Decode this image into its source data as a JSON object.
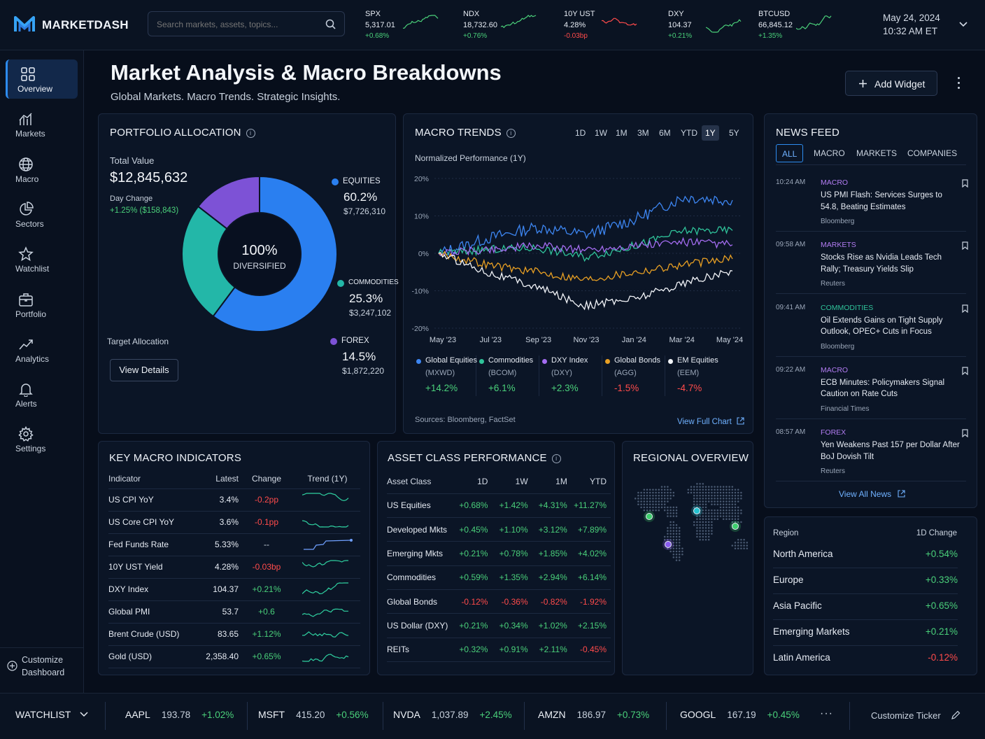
{
  "app": {
    "name": "MARKETDASH"
  },
  "search": {
    "placeholder": "Search markets, assets, topics..."
  },
  "tickers": [
    {
      "sym": "SPX",
      "val": "5,317.01",
      "chg": "+0.68%",
      "up": true
    },
    {
      "sym": "NDX",
      "val": "18,732.60",
      "chg": "+0.76%",
      "up": true
    },
    {
      "sym": "10Y UST",
      "val": "4.28%",
      "chg": "-0.03bp",
      "up": false
    },
    {
      "sym": "DXY",
      "val": "104.37",
      "chg": "+0.21%",
      "up": true
    },
    {
      "sym": "BTCUSD",
      "val": "66,845.12",
      "chg": "+1.35%",
      "up": true
    }
  ],
  "datetime": {
    "date": "May 24, 2024",
    "time": "10:32 AM ET"
  },
  "sidebar": {
    "items": [
      {
        "label": "Overview",
        "icon": "grid-icon"
      },
      {
        "label": "Markets",
        "icon": "chart-bar-icon"
      },
      {
        "label": "Macro",
        "icon": "globe-icon"
      },
      {
        "label": "Sectors",
        "icon": "pie-icon"
      },
      {
        "label": "Watchlist",
        "icon": "star-icon"
      },
      {
        "label": "Portfolio",
        "icon": "briefcase-icon"
      },
      {
        "label": "Analytics",
        "icon": "trend-icon"
      },
      {
        "label": "Alerts",
        "icon": "bell-icon"
      },
      {
        "label": "Settings",
        "icon": "gear-icon"
      }
    ],
    "customize_line1": "Customize",
    "customize_line2": "Dashboard"
  },
  "header": {
    "title": "Market Analysis & Macro Breakdowns",
    "subtitle": "Global Markets. Macro Trends. Strategic Insights.",
    "add_widget": "Add Widget"
  },
  "portfolio": {
    "title": "PORTFOLIO ALLOCATION",
    "total_label": "Total Value",
    "total_value": "$12,845,632",
    "day_change_label": "Day Change",
    "day_change_value": "+1.25% ($158,843)",
    "center_pct": "100%",
    "center_label": "DIVERSIFIED",
    "target_label": "Target Allocation",
    "view_details": "View Details",
    "slices": [
      {
        "name": "EQUITIES",
        "pct": "60.2%",
        "amount": "$7,726,310",
        "value": 60.2,
        "color": "#2a7ff0"
      },
      {
        "name": "COMMODITIES",
        "pct": "25.3%",
        "amount": "$3,247,102",
        "value": 25.3,
        "color": "#23b7a8"
      },
      {
        "name": "FOREX",
        "pct": "14.5%",
        "amount": "$1,872,220",
        "value": 14.5,
        "color": "#7d52d6"
      }
    ]
  },
  "macro": {
    "title": "MACRO TRENDS",
    "ranges": [
      "1D",
      "1W",
      "1M",
      "3M",
      "6M",
      "YTD",
      "1Y",
      "5Y"
    ],
    "active_range": "1Y",
    "chart_label": "Normalized Performance (1Y)",
    "sources": "Sources: Bloomberg, FactSet",
    "view_full": "View Full Chart",
    "legend": [
      {
        "name": "Global Equities",
        "code": "(MXWD)",
        "chg": "+14.2%",
        "up": true,
        "color": "#3d86f2"
      },
      {
        "name": "Commodities",
        "code": "(BCOM)",
        "chg": "+6.1%",
        "up": true,
        "color": "#2fc39a"
      },
      {
        "name": "DXY Index",
        "code": "(DXY)",
        "chg": "+2.3%",
        "up": true,
        "color": "#a36cf0"
      },
      {
        "name": "Global Bonds",
        "code": "(AGG)",
        "chg": "-1.5%",
        "up": false,
        "color": "#e9a023"
      },
      {
        "name": "EM Equities",
        "code": "(EEM)",
        "chg": "-4.7%",
        "up": false,
        "color": "#f2f4f8"
      }
    ]
  },
  "chart_data": {
    "type": "line",
    "title": "Normalized Performance (1Y)",
    "x": [
      "May '23",
      "Jul '23",
      "Sep '23",
      "Nov '23",
      "Jan '24",
      "Mar '24",
      "May '24"
    ],
    "yticks": [
      "20%",
      "10%",
      "0%",
      "-10%",
      "-20%"
    ],
    "ylim": [
      -20,
      20
    ],
    "series": [
      {
        "name": "Global Equities",
        "values": [
          0,
          4,
          7,
          5,
          9,
          15,
          14.2
        ]
      },
      {
        "name": "Commodities",
        "values": [
          0,
          1,
          1.5,
          -1,
          2,
          6,
          6.1
        ]
      },
      {
        "name": "DXY Index",
        "values": [
          0,
          1,
          2,
          1,
          2,
          3,
          2.3
        ]
      },
      {
        "name": "Global Bonds",
        "values": [
          0,
          -3,
          -5,
          -7,
          -5,
          -3,
          -1.5
        ]
      },
      {
        "name": "EM Equities",
        "values": [
          0,
          -5,
          -9,
          -14,
          -12,
          -8,
          -4.7
        ]
      }
    ]
  },
  "news": {
    "title": "NEWS FEED",
    "tabs": [
      "ALL",
      "MACRO",
      "MARKETS",
      "COMPANIES"
    ],
    "items": [
      {
        "time": "10:24 AM",
        "cat": "MACRO",
        "color": "#b27cf2",
        "head": "US PMI Flash: Services Surges to 54.8, Beating Estimates",
        "src": "Bloomberg"
      },
      {
        "time": "09:58 AM",
        "cat": "MARKETS",
        "color": "#b27cf2",
        "head": "Stocks Rise as Nvidia Leads Tech Rally; Treasury Yields Slip",
        "src": "Reuters"
      },
      {
        "time": "09:41 AM",
        "cat": "COMMODITIES",
        "color": "#2fc39a",
        "head": "Oil Extends Gains on Tight Supply Outlook, OPEC+ Cuts in Focus",
        "src": "Bloomberg"
      },
      {
        "time": "09:22 AM",
        "cat": "MACRO",
        "color": "#b27cf2",
        "head": "ECB Minutes: Policymakers Signal Caution on Rate Cuts",
        "src": "Financial Times"
      },
      {
        "time": "08:57 AM",
        "cat": "FOREX",
        "color": "#b27cf2",
        "head": "Yen Weakens Past 157 per Dollar After BoJ Dovish Tilt",
        "src": "Reuters"
      }
    ],
    "view_all": "View All News"
  },
  "indicators": {
    "title": "KEY MACRO INDICATORS",
    "headers": [
      "Indicator",
      "Latest",
      "Change",
      "Trend (1Y)"
    ],
    "rows": [
      {
        "name": "US CPI YoY",
        "latest": "3.4%",
        "chg": "-0.2pp",
        "dir": "down"
      },
      {
        "name": "US Core CPI YoY",
        "latest": "3.6%",
        "chg": "-0.1pp",
        "dir": "down"
      },
      {
        "name": "Fed Funds Rate",
        "latest": "5.33%",
        "chg": "--",
        "dir": "flat"
      },
      {
        "name": "10Y UST Yield",
        "latest": "4.28%",
        "chg": "-0.03bp",
        "dir": "down"
      },
      {
        "name": "DXY Index",
        "latest": "104.37",
        "chg": "+0.21%",
        "dir": "up"
      },
      {
        "name": "Global PMI",
        "latest": "53.7",
        "chg": "+0.6",
        "dir": "up"
      },
      {
        "name": "Brent Crude (USD)",
        "latest": "83.65",
        "chg": "+1.12%",
        "dir": "up"
      },
      {
        "name": "Gold (USD)",
        "latest": "2,358.40",
        "chg": "+0.65%",
        "dir": "up"
      }
    ]
  },
  "assets": {
    "title": "ASSET CLASS PERFORMANCE",
    "headers": [
      "Asset Class",
      "1D",
      "1W",
      "1M",
      "YTD"
    ],
    "rows": [
      {
        "name": "US Equities",
        "vals": [
          "+0.68%",
          "+1.42%",
          "+4.31%",
          "+11.27%"
        ]
      },
      {
        "name": "Developed Mkts",
        "vals": [
          "+0.45%",
          "+1.10%",
          "+3.12%",
          "+7.89%"
        ]
      },
      {
        "name": "Emerging Mkts",
        "vals": [
          "+0.21%",
          "+0.78%",
          "+1.85%",
          "+4.02%"
        ]
      },
      {
        "name": "Commodities",
        "vals": [
          "+0.59%",
          "+1.35%",
          "+2.94%",
          "+6.14%"
        ]
      },
      {
        "name": "Global Bonds",
        "vals": [
          "-0.12%",
          "-0.36%",
          "-0.82%",
          "-1.92%"
        ]
      },
      {
        "name": "US Dollar (DXY)",
        "vals": [
          "+0.21%",
          "+0.34%",
          "+1.02%",
          "+2.15%"
        ]
      },
      {
        "name": "REITs",
        "vals": [
          "+0.32%",
          "+0.91%",
          "+2.11%",
          "-0.45%"
        ]
      }
    ]
  },
  "regional": {
    "title": "REGIONAL OVERVIEW",
    "head_region": "Region",
    "head_change": "1D Change",
    "rows": [
      {
        "name": "North America",
        "chg": "+0.54%"
      },
      {
        "name": "Europe",
        "chg": "+0.33%"
      },
      {
        "name": "Asia Pacific",
        "chg": "+0.65%"
      },
      {
        "name": "Emerging Markets",
        "chg": "+0.21%"
      },
      {
        "name": "Latin America",
        "chg": "-0.12%"
      }
    ]
  },
  "watchlist": {
    "label": "WATCHLIST",
    "items": [
      {
        "sym": "AAPL",
        "price": "193.78",
        "chg": "+1.02%"
      },
      {
        "sym": "MSFT",
        "price": "415.20",
        "chg": "+0.56%"
      },
      {
        "sym": "NVDA",
        "price": "1,037.89",
        "chg": "+2.45%"
      },
      {
        "sym": "AMZN",
        "price": "186.97",
        "chg": "+0.73%"
      },
      {
        "sym": "GOOGL",
        "price": "167.19",
        "chg": "+0.45%"
      }
    ],
    "more": "···",
    "customize": "Customize Ticker"
  }
}
